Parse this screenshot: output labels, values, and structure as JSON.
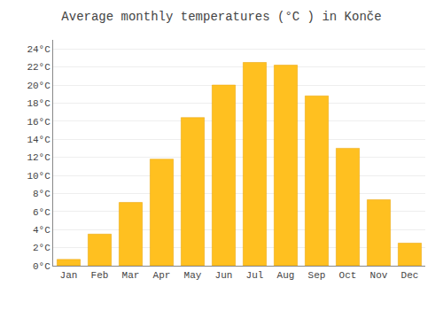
{
  "chart_data": {
    "type": "bar",
    "title": "Average monthly temperatures (°C ) in Konče",
    "categories": [
      "Jan",
      "Feb",
      "Mar",
      "Apr",
      "May",
      "Jun",
      "Jul",
      "Aug",
      "Sep",
      "Oct",
      "Nov",
      "Dec"
    ],
    "values": [
      0.7,
      3.5,
      7.0,
      11.8,
      16.4,
      20.0,
      22.5,
      22.2,
      18.8,
      13.0,
      7.3,
      2.5
    ],
    "color": "#FFC020",
    "ylim": [
      0,
      25
    ],
    "yticks": [
      {
        "value": 0,
        "label": "0°C"
      },
      {
        "value": 2,
        "label": "2°C"
      },
      {
        "value": 4,
        "label": "4°C"
      },
      {
        "value": 6,
        "label": "6°C"
      },
      {
        "value": 8,
        "label": "8°C"
      },
      {
        "value": 10,
        "label": "10°C"
      },
      {
        "value": 12,
        "label": "12°C"
      },
      {
        "value": 14,
        "label": "14°C"
      },
      {
        "value": 16,
        "label": "16°C"
      },
      {
        "value": 18,
        "label": "18°C"
      },
      {
        "value": 20,
        "label": "20°C"
      },
      {
        "value": 22,
        "label": "22°C"
      },
      {
        "value": 24,
        "label": "24°C"
      }
    ],
    "grid": true
  }
}
